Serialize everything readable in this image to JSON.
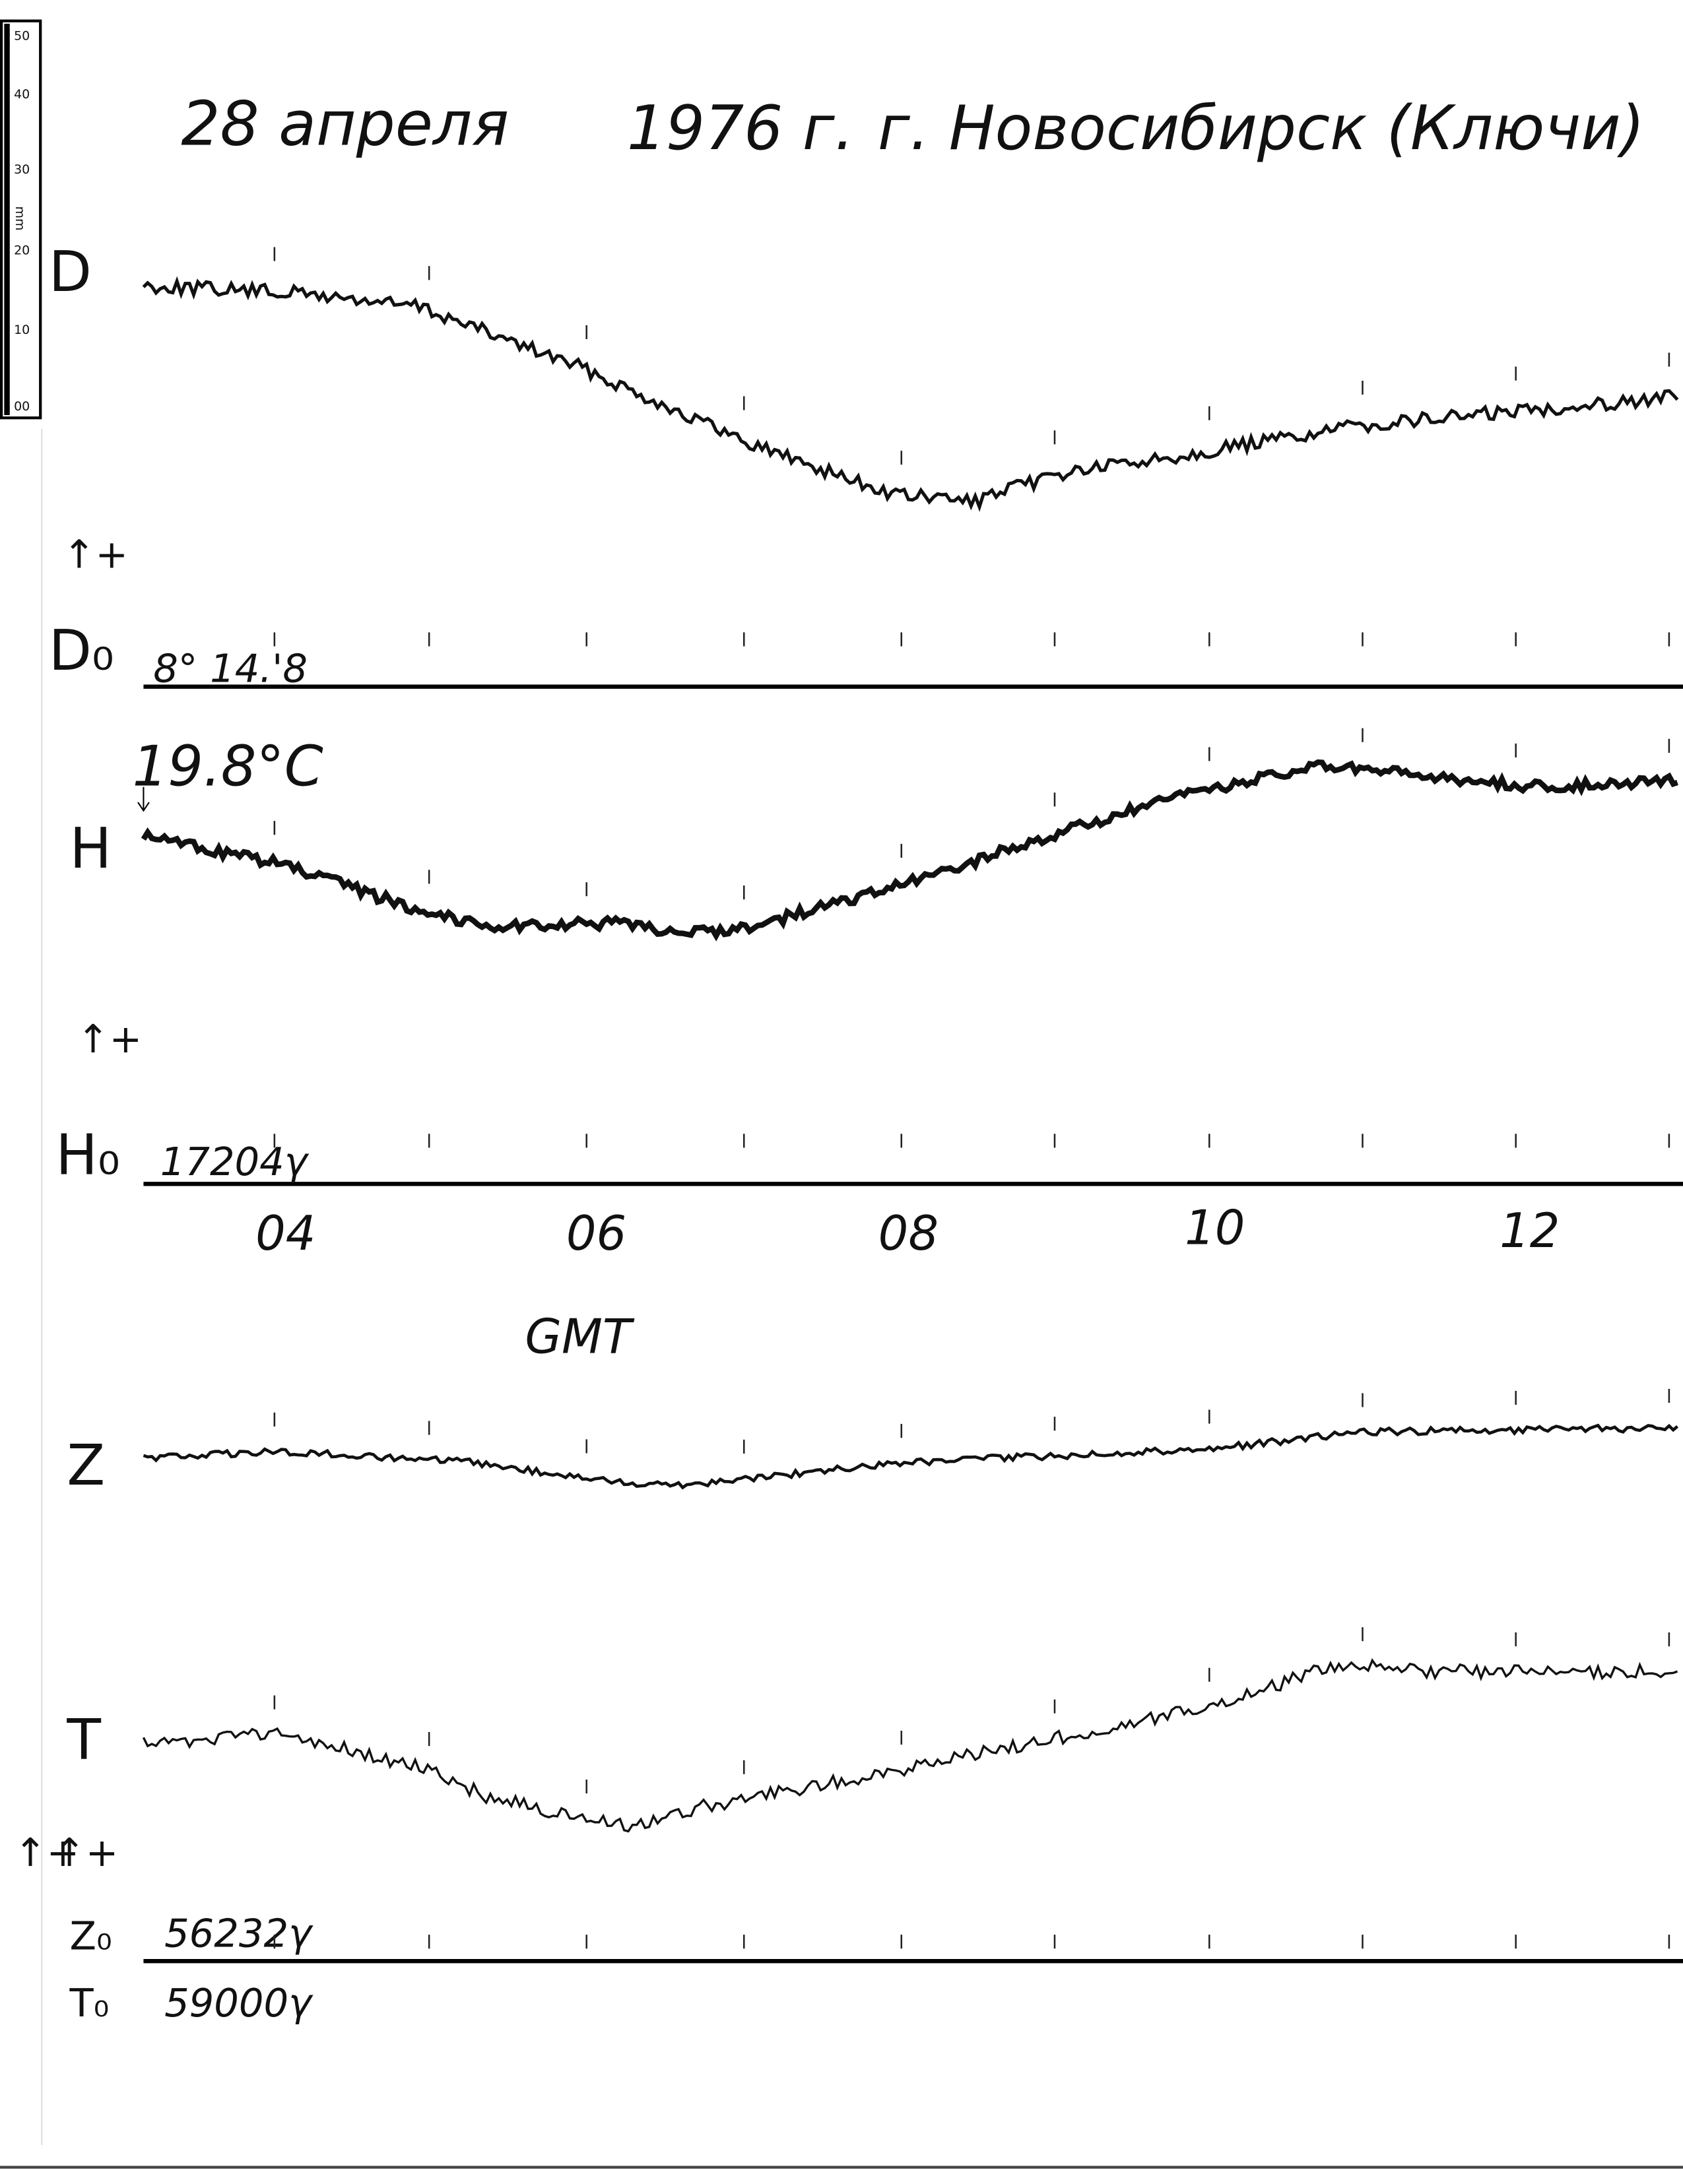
{
  "ruler": {
    "labels": [
      "50",
      "40",
      "30",
      "20",
      "10",
      "00"
    ],
    "unit": "mm"
  },
  "title": {
    "date": "28 апреля",
    "year": "1976 г.",
    "place": "г. Новосибирск (Ключи)"
  },
  "channels": [
    {
      "label": "D",
      "polarity": "↑+",
      "baseline_label": "D₀",
      "baseline_value": "8° 14.'8"
    },
    {
      "label": "H",
      "polarity": "↑+",
      "baseline_label": "H₀",
      "baseline_value": "17204γ"
    },
    {
      "label": "Z",
      "polarity": "↑+",
      "baseline_label": "Z₀",
      "baseline_value": "56232γ"
    },
    {
      "label": "T",
      "polarity": "↑+",
      "baseline_label": "T₀",
      "baseline_value": "59000γ"
    }
  ],
  "temperature": "19.8°C",
  "time_axis": {
    "labels": [
      "04",
      "06",
      "08",
      "10",
      "12"
    ],
    "unit": "GMT"
  }
}
